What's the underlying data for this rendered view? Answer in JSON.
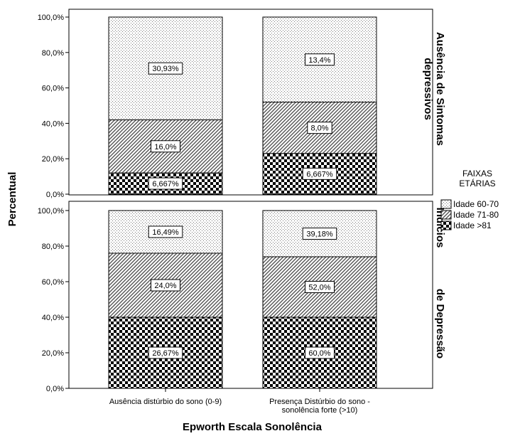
{
  "chart_data": {
    "type": "bar",
    "stacked": true,
    "normalized": true,
    "xlabel": "Epworth Escala Sonolência",
    "ylabel": "Percentual",
    "ylim": [
      0,
      100
    ],
    "yticks": [
      "0,0%",
      "20,0%",
      "40,0%",
      "60,0%",
      "80,0%",
      "100,0%"
    ],
    "categories": [
      "Ausência distúrbio do sono (0-9)",
      "Presença Distúrbio do sono - sonolência forte (>10)"
    ],
    "legend": {
      "title_line1": "FAIXAS",
      "title_line2": "ETÁRIAS",
      "placement": "right",
      "entries": [
        "Idade 60-70",
        "Idade 71-80",
        "Idade >81"
      ]
    },
    "panels": [
      {
        "title_line1": "Ausência de Sintomas",
        "title_line2": "depressivos",
        "bars": [
          {
            "segments": [
              {
                "series": "Idade >81",
                "height": 12,
                "label": "6,667%"
              },
              {
                "series": "Idade 71-80",
                "height": 30,
                "label": "16,0%"
              },
              {
                "series": "Idade 60-70",
                "height": 58,
                "label": "30,93%"
              }
            ]
          },
          {
            "segments": [
              {
                "series": "Idade >81",
                "height": 23,
                "label": "6,667%"
              },
              {
                "series": "Idade 71-80",
                "height": 29,
                "label": "8,0%"
              },
              {
                "series": "Idade 60-70",
                "height": 48,
                "label": "13,4%"
              }
            ]
          }
        ]
      },
      {
        "title_line1": "Indícios",
        "title_line2": "de Depressão",
        "bars": [
          {
            "segments": [
              {
                "series": "Idade >81",
                "height": 40,
                "label": "26,67%"
              },
              {
                "series": "Idade 71-80",
                "height": 36,
                "label": "24,0%"
              },
              {
                "series": "Idade 60-70",
                "height": 24,
                "label": "16,49%"
              }
            ]
          },
          {
            "segments": [
              {
                "series": "Idade >81",
                "height": 40,
                "label": "60,0%"
              },
              {
                "series": "Idade 71-80",
                "height": 34,
                "label": "52,0%"
              },
              {
                "series": "Idade 60-70",
                "height": 26,
                "label": "39,18%"
              }
            ]
          }
        ]
      }
    ]
  }
}
